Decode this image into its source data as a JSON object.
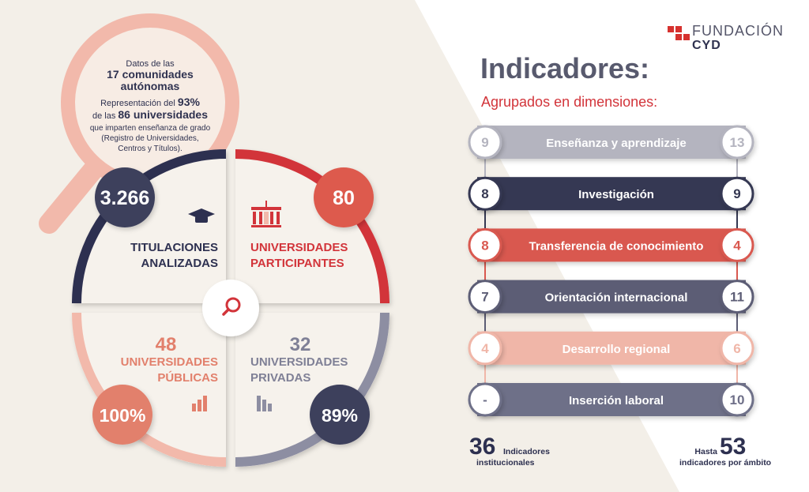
{
  "logo": {
    "line1": "FUNDACIÓN",
    "line2": "CYD"
  },
  "intro": {
    "l1": "Datos de las",
    "l2": "17 comunidades",
    "l3": "autónomas",
    "l4a": "Representación del ",
    "l4b": "93%",
    "l5a": "de las ",
    "l5b": "86 universidades",
    "l6": "que imparten enseñanza de grado",
    "l7": "(Registro de Universidades,",
    "l8": "Centros y Títulos)."
  },
  "quadrants": {
    "titulaciones": {
      "value": "3.266",
      "line1": "TITULACIONES",
      "line2": "ANALIZADAS"
    },
    "participantes": {
      "value": "80",
      "line1": "UNIVERSIDADES",
      "line2": "PARTICIPANTES"
    },
    "publicas": {
      "count": "48",
      "line1": "UNIVERSIDADES",
      "line2": "PÚBLICAS",
      "percent": "100%"
    },
    "privadas": {
      "count": "32",
      "line1": "UNIVERSIDADES",
      "line2": "PRIVADAS",
      "percent": "89%"
    }
  },
  "indicators": {
    "title": "Indicadores:",
    "subtitle": "Agrupados en dimensiones:",
    "rows": [
      {
        "left": "9",
        "name": "Enseñanza y aprendizaje",
        "right": "13",
        "color": "#b4b4bf"
      },
      {
        "left": "8",
        "name": "Investigación",
        "right": "9",
        "color": "#353852"
      },
      {
        "left": "8",
        "name": "Transferencia de conocimiento",
        "right": "4",
        "color": "#d9584f"
      },
      {
        "left": "7",
        "name": "Orientación internacional",
        "right": "11",
        "color": "#5c5d75"
      },
      {
        "left": "4",
        "name": "Desarrollo regional",
        "right": "6",
        "color": "#f0b6a8"
      },
      {
        "left": "-",
        "name": "Inserción laboral",
        "right": "10",
        "color": "#6e6f88"
      }
    ],
    "footer_left": {
      "number": "36",
      "line1": "Indicadores",
      "line2": "institucionales"
    },
    "footer_right": {
      "prefix": "Hasta",
      "number": "53",
      "line1": "indicadores por ámbito"
    }
  }
}
